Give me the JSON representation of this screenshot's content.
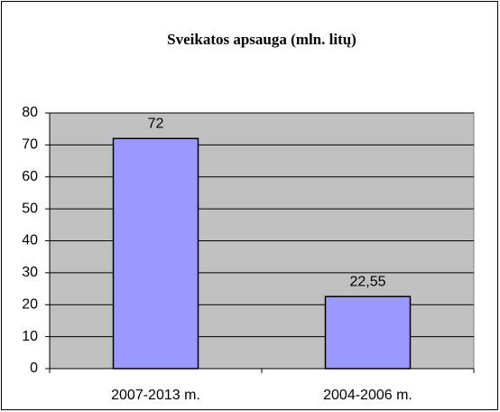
{
  "chart_data": {
    "type": "bar",
    "title": "Sveikatos apsauga (mln. litų)",
    "categories": [
      "2007-2013 m.",
      "2004-2006 m."
    ],
    "values": [
      72,
      22.55
    ],
    "value_labels": [
      "72",
      "22,55"
    ],
    "color": "#9999ff",
    "plot_background": "#c0c0c0",
    "ylim": [
      0,
      80
    ],
    "yticks": [
      0,
      10,
      20,
      30,
      40,
      50,
      60,
      70,
      80
    ],
    "grid": true
  }
}
